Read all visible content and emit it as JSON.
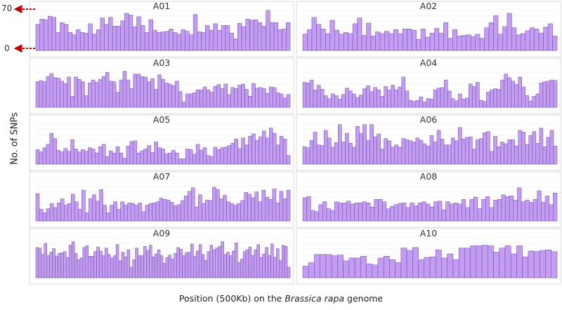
{
  "figure": {
    "y_axis_title": "No. of SNPs",
    "x_axis_title_prefix": "Position (500Kb) on the ",
    "x_axis_title_species": "Brassica rapa",
    "x_axis_title_suffix": " genome",
    "y_max_label": "70",
    "y_min_label": "0",
    "colors": {
      "bar_fill": "#c59cf5",
      "bar_stroke": "#6a4d8e",
      "arrow": "#c00000",
      "panel_border": "#d8d8d8"
    }
  },
  "chart_data": [
    {
      "type": "bar",
      "title": "A01",
      "ylim": [
        0,
        70
      ],
      "values": [
        45,
        54,
        53,
        59,
        57,
        31,
        48,
        45,
        31,
        27,
        36,
        31,
        30,
        46,
        28,
        36,
        56,
        45,
        57,
        42,
        42,
        51,
        64,
        61,
        41,
        58,
        43,
        31,
        53,
        35,
        31,
        32,
        33,
        37,
        31,
        28,
        36,
        33,
        27,
        62,
        32,
        31,
        43,
        35,
        46,
        35,
        43,
        43,
        30,
        20,
        47,
        41,
        54,
        52,
        53,
        48,
        42,
        69,
        48,
        48,
        36,
        37,
        48
      ]
    },
    {
      "type": "bar",
      "title": "A02",
      "ylim": [
        0,
        70
      ],
      "values": [
        28,
        36,
        57,
        45,
        37,
        29,
        52,
        35,
        28,
        31,
        29,
        46,
        56,
        26,
        47,
        25,
        32,
        29,
        33,
        29,
        36,
        29,
        37,
        37,
        35,
        19,
        37,
        23,
        30,
        38,
        30,
        48,
        21,
        36,
        25,
        26,
        27,
        24,
        28,
        21,
        39,
        48,
        60,
        28,
        41,
        64,
        39,
        27,
        29,
        34,
        39,
        37,
        30,
        40,
        46,
        25
      ]
    },
    {
      "type": "bar",
      "title": "A03",
      "ylim": [
        0,
        70
      ],
      "values": [
        44,
        46,
        44,
        53,
        58,
        51,
        50,
        45,
        41,
        52,
        19,
        52,
        48,
        44,
        20,
        42,
        47,
        43,
        48,
        53,
        60,
        45,
        44,
        26,
        47,
        62,
        47,
        32,
        57,
        57,
        53,
        52,
        44,
        49,
        31,
        56,
        48,
        42,
        40,
        37,
        45,
        27,
        9,
        23,
        23,
        25,
        30,
        30,
        35,
        30,
        26,
        36,
        39,
        32,
        40,
        22,
        34,
        32,
        38,
        40,
        31,
        19,
        41,
        33,
        34,
        32,
        24,
        35,
        34,
        25,
        23,
        16,
        22
      ]
    },
    {
      "type": "bar",
      "title": "A04",
      "ylim": [
        0,
        70
      ],
      "values": [
        43,
        42,
        47,
        30,
        38,
        31,
        20,
        15,
        23,
        20,
        14,
        22,
        33,
        28,
        23,
        17,
        21,
        32,
        37,
        27,
        34,
        30,
        19,
        36,
        30,
        38,
        30,
        35,
        52,
        28,
        12,
        10,
        12,
        18,
        9,
        15,
        14,
        30,
        33,
        34,
        47,
        28,
        15,
        11,
        23,
        14,
        16,
        40,
        36,
        43,
        12,
        10,
        26,
        30,
        32,
        31,
        47,
        57,
        51,
        45,
        39,
        52,
        35,
        20,
        11,
        19,
        23,
        42,
        44,
        45,
        47,
        46
      ]
    },
    {
      "type": "bar",
      "title": "A05",
      "ylim": [
        0,
        70
      ],
      "values": [
        25,
        21,
        28,
        34,
        53,
        44,
        24,
        21,
        27,
        22,
        42,
        26,
        21,
        25,
        22,
        28,
        26,
        19,
        30,
        34,
        13,
        23,
        19,
        30,
        19,
        10,
        31,
        39,
        40,
        19,
        23,
        26,
        32,
        20,
        38,
        28,
        26,
        18,
        19,
        24,
        19,
        9,
        9,
        26,
        25,
        17,
        34,
        24,
        28,
        15,
        13,
        29,
        25,
        28,
        29,
        32,
        36,
        43,
        27,
        45,
        33,
        48,
        52,
        41,
        47,
        57,
        45,
        62,
        53,
        33,
        48,
        43,
        15
      ]
    },
    {
      "type": "bar",
      "title": "A06",
      "ylim": [
        0,
        70
      ],
      "values": [
        30,
        28,
        41,
        55,
        33,
        32,
        58,
        45,
        29,
        37,
        68,
        38,
        53,
        36,
        29,
        65,
        53,
        68,
        41,
        68,
        47,
        52,
        26,
        44,
        40,
        29,
        33,
        29,
        44,
        42,
        40,
        38,
        45,
        41,
        35,
        31,
        49,
        38,
        58,
        43,
        33,
        33,
        45,
        40,
        63,
        43,
        46,
        47,
        26,
        42,
        44,
        54,
        56,
        22,
        48,
        30,
        38,
        35,
        42,
        42,
        31,
        58,
        55,
        34,
        49,
        56,
        36,
        62,
        30,
        46,
        58,
        31
      ]
    },
    {
      "type": "bar",
      "title": "A07",
      "ylim": [
        0,
        70
      ],
      "values": [
        47,
        20,
        14,
        21,
        30,
        23,
        31,
        38,
        27,
        30,
        46,
        33,
        20,
        53,
        14,
        38,
        45,
        34,
        54,
        27,
        14,
        27,
        33,
        20,
        33,
        27,
        31,
        30,
        27,
        31,
        16,
        27,
        30,
        31,
        33,
        39,
        37,
        36,
        32,
        26,
        28,
        35,
        43,
        51,
        57,
        24,
        45,
        30,
        36,
        35,
        58,
        54,
        38,
        44,
        33,
        30,
        27,
        30,
        35,
        49,
        46,
        40,
        50,
        33,
        53,
        41,
        37,
        55,
        31,
        51,
        38,
        53
      ]
    },
    {
      "type": "bar",
      "title": "A08",
      "ylim": [
        0,
        70
      ],
      "values": [
        40,
        42,
        18,
        16,
        28,
        33,
        21,
        18,
        33,
        31,
        31,
        34,
        29,
        31,
        31,
        33,
        31,
        24,
        37,
        37,
        33,
        21,
        25,
        28,
        30,
        31,
        23,
        31,
        26,
        31,
        33,
        29,
        24,
        33,
        34,
        19,
        33,
        29,
        31,
        29,
        37,
        23,
        37,
        41,
        21,
        37,
        42,
        23,
        36,
        37,
        45,
        42,
        43,
        36,
        57,
        33,
        36,
        32,
        37,
        52,
        32,
        43,
        28,
        48
      ]
    },
    {
      "type": "bar",
      "title": "A09",
      "ylim": [
        0,
        70
      ],
      "values": [
        52,
        51,
        40,
        59,
        38,
        44,
        50,
        37,
        42,
        43,
        45,
        35,
        56,
        62,
        42,
        31,
        34,
        52,
        55,
        37,
        37,
        45,
        53,
        46,
        38,
        51,
        40,
        34,
        38,
        57,
        29,
        44,
        36,
        48,
        18,
        31,
        51,
        38,
        38,
        54,
        47,
        56,
        36,
        41,
        48,
        38,
        25,
        35,
        39,
        32,
        42,
        52,
        49,
        38,
        43,
        44,
        58,
        37,
        46,
        57,
        40,
        30,
        45,
        56,
        48,
        51,
        54,
        62,
        40,
        44,
        38,
        46,
        60,
        26,
        32,
        45,
        48,
        53,
        38,
        48,
        57,
        35,
        41,
        52,
        38,
        58,
        35,
        50,
        30,
        56,
        54,
        18
      ]
    },
    {
      "type": "bar",
      "title": "A10",
      "ylim": [
        0,
        70
      ],
      "values": [
        20,
        26,
        40,
        40,
        40,
        38,
        39,
        29,
        34,
        34,
        37,
        24,
        22,
        34,
        37,
        31,
        26,
        51,
        47,
        52,
        31,
        35,
        36,
        48,
        34,
        41,
        31,
        51,
        51,
        55,
        55,
        56,
        55,
        44,
        51,
        55,
        41,
        55,
        36,
        46,
        45,
        47,
        48,
        45
      ]
    }
  ]
}
